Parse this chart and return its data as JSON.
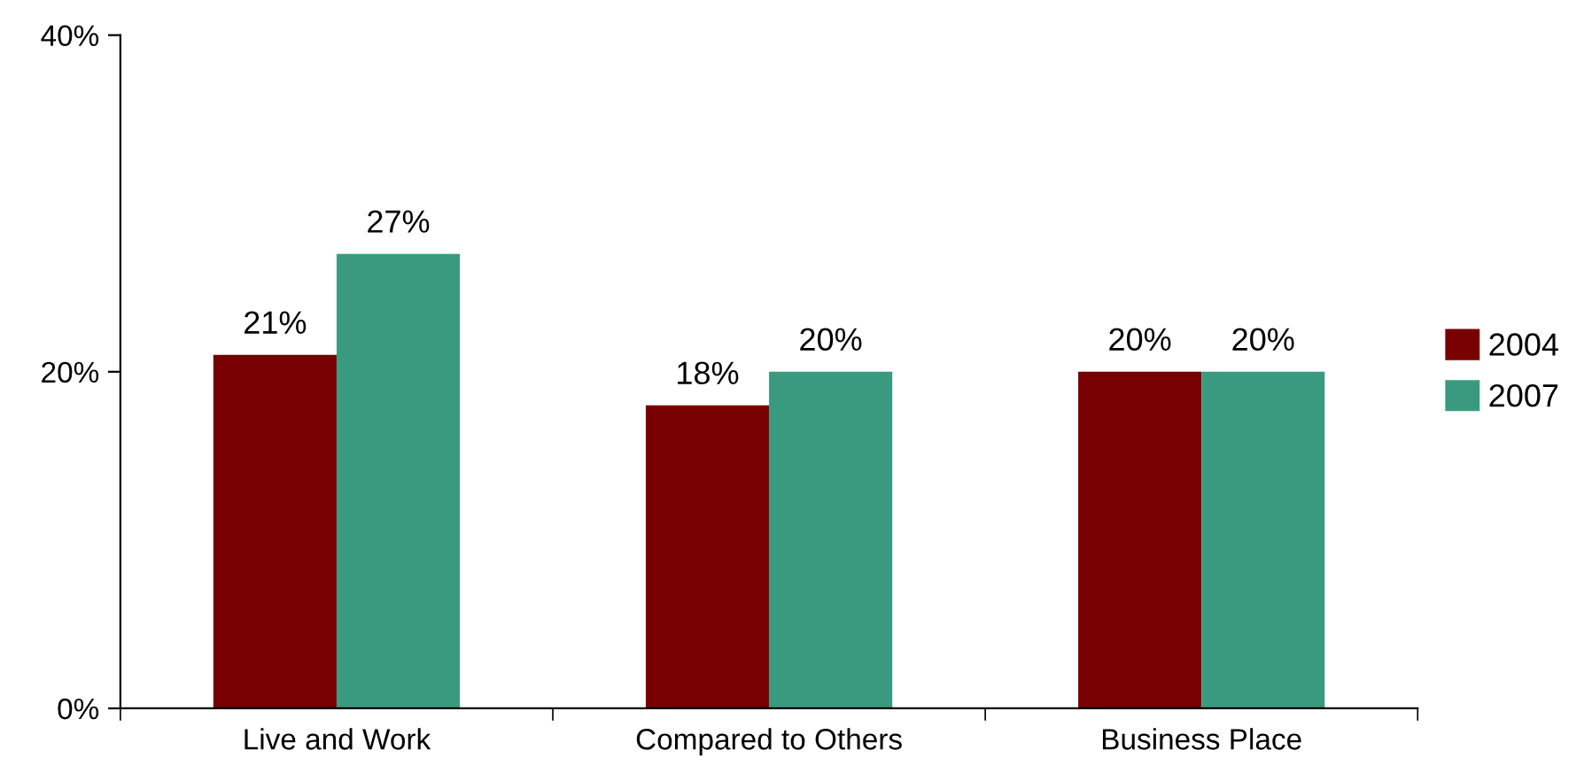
{
  "chart_data": {
    "type": "bar",
    "categories": [
      "Live and Work",
      "Compared to Others",
      "Business Place"
    ],
    "series": [
      {
        "name": "2004",
        "color": "#780000",
        "values": [
          21,
          18,
          20
        ],
        "value_labels": [
          "21%",
          "18%",
          "20%"
        ]
      },
      {
        "name": "2007",
        "color": "#3a9a7f",
        "values": [
          27,
          20,
          20
        ],
        "value_labels": [
          "27%",
          "20%",
          "20%"
        ]
      }
    ],
    "ylim": [
      0,
      40
    ],
    "yticks": [
      {
        "value": 0,
        "label": "0%"
      },
      {
        "value": 20,
        "label": "20%"
      },
      {
        "value": 40,
        "label": "40%"
      }
    ],
    "grid": false,
    "legend": "right"
  }
}
